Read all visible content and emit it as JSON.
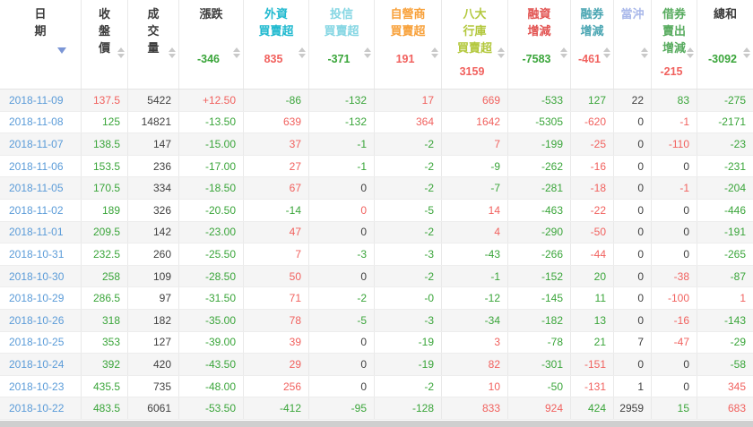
{
  "colors": {
    "red": "#f1615e",
    "green": "#3aa53a",
    "neutral": "#3f3f3f",
    "date_link": "#5a9bd8",
    "header_text": "#3c3c3c",
    "sort_icon": "#c9c9c9",
    "active_sort_icon": "#7b96d6",
    "stripe": "#f5f5f5",
    "scrollbar": "#cfcfcf"
  },
  "table": {
    "columns": [
      {
        "key": "date",
        "label": "日\n期",
        "color": "#3c3c3c",
        "summary": "",
        "summary_color": "",
        "sort": "desc"
      },
      {
        "key": "close",
        "label": "收\n盤\n價",
        "color": "#3c3c3c",
        "summary": "",
        "summary_color": "",
        "sort": "updown"
      },
      {
        "key": "volume",
        "label": "成\n交\n量",
        "color": "#3c3c3c",
        "summary": "",
        "summary_color": "",
        "sort": "updown"
      },
      {
        "key": "change",
        "label": "漲跌",
        "color": "#3c3c3c",
        "summary": "-346",
        "summary_color": "green",
        "sort": "updown"
      },
      {
        "key": "foreign-net",
        "label": "外資\n買賣超",
        "color": "#20b9cf",
        "summary": "835",
        "summary_color": "red",
        "sort": "updown"
      },
      {
        "key": "trust-net",
        "label": "投信\n買賣超",
        "color": "#85d6e3",
        "summary": "-371",
        "summary_color": "green",
        "sort": "updown"
      },
      {
        "key": "dealer-net",
        "label": "自營商\n買賣超",
        "color": "#f8a13b",
        "summary": "191",
        "summary_color": "red",
        "sort": "updown"
      },
      {
        "key": "banks-net",
        "label": "八大\n行庫\n買賣超",
        "color": "#b3c83d",
        "summary": "3159",
        "summary_color": "red",
        "sort": "updown"
      },
      {
        "key": "margin-change",
        "label": "融資\n增減",
        "color": "#e25351",
        "summary": "-7583",
        "summary_color": "green",
        "sort": "updown"
      },
      {
        "key": "short-change",
        "label": "融券\n增減",
        "color": "#4ba6b3",
        "summary": "-461",
        "summary_color": "red",
        "sort": "updown"
      },
      {
        "key": "day-trade",
        "label": "當沖",
        "color": "#a9b8ea",
        "summary": "",
        "summary_color": "",
        "sort": "updown"
      },
      {
        "key": "sec-lending",
        "label": "借券\n賣出\n增減",
        "color": "#57ab5e",
        "summary": "-215",
        "summary_color": "red",
        "sort": "updown"
      },
      {
        "key": "total",
        "label": "總和",
        "color": "#3c3c3c",
        "summary": "-3092",
        "summary_color": "green",
        "sort": "updown"
      }
    ],
    "rows": [
      {
        "date": "2018-11-09",
        "cells": [
          [
            "137.5",
            "red"
          ],
          [
            "5422",
            "neutral"
          ],
          [
            "+12.50",
            "red"
          ],
          [
            "-86",
            "green"
          ],
          [
            "-132",
            "green"
          ],
          [
            "17",
            "red"
          ],
          [
            "669",
            "red"
          ],
          [
            "-533",
            "green"
          ],
          [
            "127",
            "green"
          ],
          [
            "22",
            "neutral"
          ],
          [
            "83",
            "green"
          ],
          [
            "-275",
            "green"
          ]
        ]
      },
      {
        "date": "2018-11-08",
        "cells": [
          [
            "125",
            "green"
          ],
          [
            "14821",
            "neutral"
          ],
          [
            "-13.50",
            "green"
          ],
          [
            "639",
            "red"
          ],
          [
            "-132",
            "green"
          ],
          [
            "364",
            "red"
          ],
          [
            "1642",
            "red"
          ],
          [
            "-5305",
            "green"
          ],
          [
            "-620",
            "red"
          ],
          [
            "0",
            "neutral"
          ],
          [
            "-1",
            "red"
          ],
          [
            "-2171",
            "green"
          ]
        ]
      },
      {
        "date": "2018-11-07",
        "cells": [
          [
            "138.5",
            "green"
          ],
          [
            "147",
            "neutral"
          ],
          [
            "-15.00",
            "green"
          ],
          [
            "37",
            "red"
          ],
          [
            "-1",
            "green"
          ],
          [
            "-2",
            "green"
          ],
          [
            "7",
            "red"
          ],
          [
            "-199",
            "green"
          ],
          [
            "-25",
            "red"
          ],
          [
            "0",
            "neutral"
          ],
          [
            "-110",
            "red"
          ],
          [
            "-23",
            "green"
          ]
        ]
      },
      {
        "date": "2018-11-06",
        "cells": [
          [
            "153.5",
            "green"
          ],
          [
            "236",
            "neutral"
          ],
          [
            "-17.00",
            "green"
          ],
          [
            "27",
            "red"
          ],
          [
            "-1",
            "green"
          ],
          [
            "-2",
            "green"
          ],
          [
            "-9",
            "green"
          ],
          [
            "-262",
            "green"
          ],
          [
            "-16",
            "red"
          ],
          [
            "0",
            "neutral"
          ],
          [
            "0",
            "neutral"
          ],
          [
            "-231",
            "green"
          ]
        ]
      },
      {
        "date": "2018-11-05",
        "cells": [
          [
            "170.5",
            "green"
          ],
          [
            "334",
            "neutral"
          ],
          [
            "-18.50",
            "green"
          ],
          [
            "67",
            "red"
          ],
          [
            "0",
            "neutral"
          ],
          [
            "-2",
            "green"
          ],
          [
            "-7",
            "green"
          ],
          [
            "-281",
            "green"
          ],
          [
            "-18",
            "red"
          ],
          [
            "0",
            "neutral"
          ],
          [
            "-1",
            "red"
          ],
          [
            "-204",
            "green"
          ]
        ]
      },
      {
        "date": "2018-11-02",
        "cells": [
          [
            "189",
            "green"
          ],
          [
            "326",
            "neutral"
          ],
          [
            "-20.50",
            "green"
          ],
          [
            "-14",
            "green"
          ],
          [
            "0",
            "red"
          ],
          [
            "-5",
            "green"
          ],
          [
            "14",
            "red"
          ],
          [
            "-463",
            "green"
          ],
          [
            "-22",
            "red"
          ],
          [
            "0",
            "neutral"
          ],
          [
            "0",
            "neutral"
          ],
          [
            "-446",
            "green"
          ]
        ]
      },
      {
        "date": "2018-11-01",
        "cells": [
          [
            "209.5",
            "green"
          ],
          [
            "142",
            "neutral"
          ],
          [
            "-23.00",
            "green"
          ],
          [
            "47",
            "red"
          ],
          [
            "0",
            "neutral"
          ],
          [
            "-2",
            "green"
          ],
          [
            "4",
            "red"
          ],
          [
            "-290",
            "green"
          ],
          [
            "-50",
            "red"
          ],
          [
            "0",
            "neutral"
          ],
          [
            "0",
            "neutral"
          ],
          [
            "-191",
            "green"
          ]
        ]
      },
      {
        "date": "2018-10-31",
        "cells": [
          [
            "232.5",
            "green"
          ],
          [
            "260",
            "neutral"
          ],
          [
            "-25.50",
            "green"
          ],
          [
            "7",
            "red"
          ],
          [
            "-3",
            "green"
          ],
          [
            "-3",
            "green"
          ],
          [
            "-43",
            "green"
          ],
          [
            "-266",
            "green"
          ],
          [
            "-44",
            "red"
          ],
          [
            "0",
            "neutral"
          ],
          [
            "0",
            "neutral"
          ],
          [
            "-265",
            "green"
          ]
        ]
      },
      {
        "date": "2018-10-30",
        "cells": [
          [
            "258",
            "green"
          ],
          [
            "109",
            "neutral"
          ],
          [
            "-28.50",
            "green"
          ],
          [
            "50",
            "red"
          ],
          [
            "0",
            "neutral"
          ],
          [
            "-2",
            "green"
          ],
          [
            "-1",
            "green"
          ],
          [
            "-152",
            "green"
          ],
          [
            "20",
            "green"
          ],
          [
            "0",
            "neutral"
          ],
          [
            "-38",
            "red"
          ],
          [
            "-87",
            "green"
          ]
        ]
      },
      {
        "date": "2018-10-29",
        "cells": [
          [
            "286.5",
            "green"
          ],
          [
            "97",
            "neutral"
          ],
          [
            "-31.50",
            "green"
          ],
          [
            "71",
            "red"
          ],
          [
            "-2",
            "green"
          ],
          [
            "-0",
            "green"
          ],
          [
            "-12",
            "green"
          ],
          [
            "-145",
            "green"
          ],
          [
            "11",
            "green"
          ],
          [
            "0",
            "neutral"
          ],
          [
            "-100",
            "red"
          ],
          [
            "1",
            "red"
          ]
        ]
      },
      {
        "date": "2018-10-26",
        "cells": [
          [
            "318",
            "green"
          ],
          [
            "182",
            "neutral"
          ],
          [
            "-35.00",
            "green"
          ],
          [
            "78",
            "red"
          ],
          [
            "-5",
            "green"
          ],
          [
            "-3",
            "green"
          ],
          [
            "-34",
            "green"
          ],
          [
            "-182",
            "green"
          ],
          [
            "13",
            "green"
          ],
          [
            "0",
            "neutral"
          ],
          [
            "-16",
            "red"
          ],
          [
            "-143",
            "green"
          ]
        ]
      },
      {
        "date": "2018-10-25",
        "cells": [
          [
            "353",
            "green"
          ],
          [
            "127",
            "neutral"
          ],
          [
            "-39.00",
            "green"
          ],
          [
            "39",
            "red"
          ],
          [
            "0",
            "neutral"
          ],
          [
            "-19",
            "green"
          ],
          [
            "3",
            "red"
          ],
          [
            "-78",
            "green"
          ],
          [
            "21",
            "green"
          ],
          [
            "7",
            "neutral"
          ],
          [
            "-47",
            "red"
          ],
          [
            "-29",
            "green"
          ]
        ]
      },
      {
        "date": "2018-10-24",
        "cells": [
          [
            "392",
            "green"
          ],
          [
            "420",
            "neutral"
          ],
          [
            "-43.50",
            "green"
          ],
          [
            "29",
            "red"
          ],
          [
            "0",
            "neutral"
          ],
          [
            "-19",
            "green"
          ],
          [
            "82",
            "red"
          ],
          [
            "-301",
            "green"
          ],
          [
            "-151",
            "red"
          ],
          [
            "0",
            "neutral"
          ],
          [
            "0",
            "neutral"
          ],
          [
            "-58",
            "green"
          ]
        ]
      },
      {
        "date": "2018-10-23",
        "cells": [
          [
            "435.5",
            "green"
          ],
          [
            "735",
            "neutral"
          ],
          [
            "-48.00",
            "green"
          ],
          [
            "256",
            "red"
          ],
          [
            "0",
            "neutral"
          ],
          [
            "-2",
            "green"
          ],
          [
            "10",
            "red"
          ],
          [
            "-50",
            "green"
          ],
          [
            "-131",
            "red"
          ],
          [
            "1",
            "neutral"
          ],
          [
            "0",
            "neutral"
          ],
          [
            "345",
            "red"
          ]
        ]
      },
      {
        "date": "2018-10-22",
        "cells": [
          [
            "483.5",
            "green"
          ],
          [
            "6061",
            "neutral"
          ],
          [
            "-53.50",
            "green"
          ],
          [
            "-412",
            "green"
          ],
          [
            "-95",
            "green"
          ],
          [
            "-128",
            "green"
          ],
          [
            "833",
            "red"
          ],
          [
            "924",
            "red"
          ],
          [
            "424",
            "green"
          ],
          [
            "2959",
            "neutral"
          ],
          [
            "15",
            "green"
          ],
          [
            "683",
            "red"
          ]
        ]
      }
    ]
  }
}
